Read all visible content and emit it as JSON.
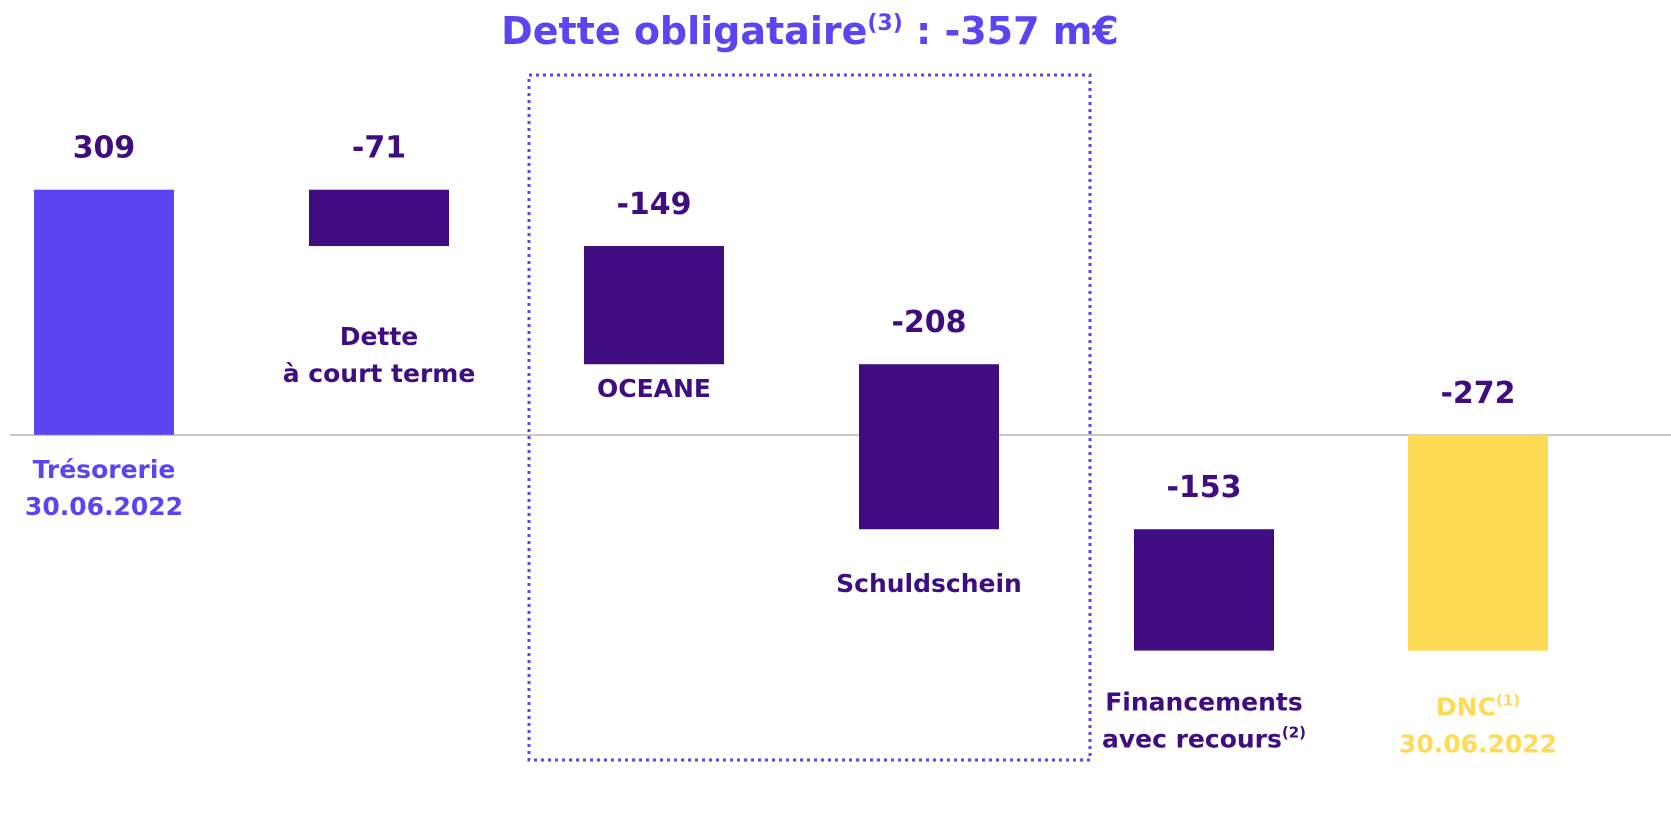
{
  "chart_data": {
    "type": "waterfall",
    "title": {
      "text": "Dette obligataire",
      "superscript": "(3)",
      "suffix": " : -357 m€"
    },
    "categories": [
      [
        [
          "Trésorerie"
        ],
        [
          "30.06.2022"
        ]
      ],
      [
        [
          "Dette"
        ],
        [
          "à court terme"
        ]
      ],
      [
        [
          "OCEANE"
        ]
      ],
      [
        [
          "Schuldschein"
        ]
      ],
      [
        [
          "Financements"
        ],
        [
          "avec recours",
          "(2)"
        ]
      ],
      [
        [
          "DNC",
          "(1)"
        ],
        [
          "30.06.2022"
        ]
      ]
    ],
    "values": [
      309,
      -71,
      -149,
      -208,
      -153,
      -272
    ],
    "totals": [
      true,
      false,
      false,
      false,
      false,
      true
    ],
    "colors": [
      "#5b45f0",
      "#3f0d7f",
      "#3f0d7f",
      "#3f0d7f",
      "#3f0d7f",
      "#ffdb55"
    ],
    "label_colors": [
      "#5b45f0",
      "#3f0d7f",
      "#3f0d7f",
      "#3f0d7f",
      "#3f0d7f",
      "#ffdb55"
    ],
    "value_label_color": "#3f0d7f",
    "title_color": "#5b45f0",
    "ylim": [
      -420,
      470
    ]
  }
}
